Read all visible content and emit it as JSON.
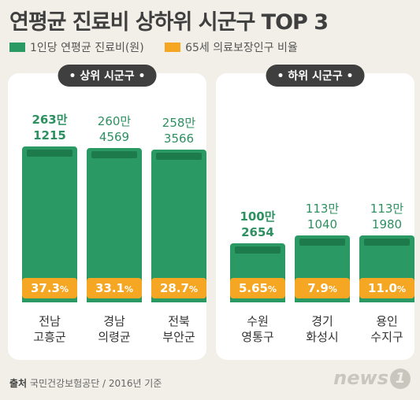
{
  "title": "연평균 진료비 상하위 시군구 TOP 3",
  "legend": [
    {
      "label": "1인당 연평균 진료비(원)",
      "color": "#2a9963"
    },
    {
      "label": "65세 의료보장인구 비율",
      "color": "#f5a623"
    }
  ],
  "panels": [
    {
      "title": "상위 시군구"
    },
    {
      "title": "하위 시군구"
    }
  ],
  "chart_data": {
    "type": "bar",
    "categories": [
      "전남 고흥군",
      "경남 의령균",
      "전북 부안군",
      "수원 영통구",
      "경기 화성시",
      "용인 수지구"
    ],
    "series": [
      {
        "name": "1인당 연평균 진료비(원)",
        "values": [
          2631215,
          2604569,
          2583566,
          1002654,
          1131040,
          1131980
        ]
      },
      {
        "name": "65세 의료보장인구 비율",
        "values": [
          37.3,
          33.1,
          28.7,
          5.65,
          7.9,
          11.0
        ]
      }
    ],
    "bars": [
      {
        "value_line1": "263만",
        "value_line2": "1215",
        "bold": true,
        "pct": "37.3",
        "region_line1": "전남",
        "region_line2": "고흥군"
      },
      {
        "value_line1": "260만",
        "value_line2": "4569",
        "bold": false,
        "pct": "33.1",
        "region_line1": "경남",
        "region_line2": "의령균"
      },
      {
        "value_line1": "258만",
        "value_line2": "3566",
        "bold": false,
        "pct": "28.7",
        "region_line1": "전북",
        "region_line2": "부안군"
      },
      {
        "value_line1": "100만",
        "value_line2": "2654",
        "bold": true,
        "pct": "5.65",
        "region_line1": "수원",
        "region_line2": "영통구"
      },
      {
        "value_line1": "113만",
        "value_line2": "1040",
        "bold": false,
        "pct": "7.9",
        "region_line1": "경기",
        "region_line2": "화성시"
      },
      {
        "value_line1": "113만",
        "value_line2": "1980",
        "bold": false,
        "pct": "11.0",
        "region_line1": "용인",
        "region_line2": "수지구"
      }
    ],
    "pct_unit": "%"
  },
  "source": {
    "label": "출처",
    "text": "국민건강보험공단 / 2016년 기준"
  },
  "logo": {
    "text": "news",
    "badge": "1"
  }
}
